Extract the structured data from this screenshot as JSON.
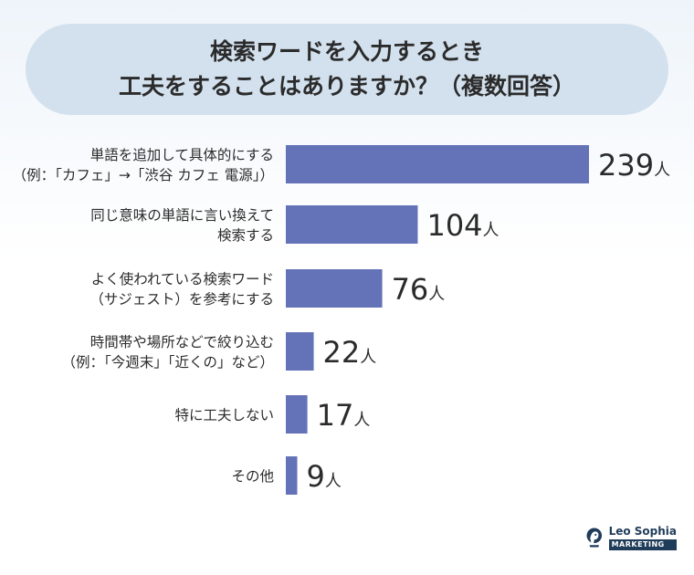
{
  "title": {
    "line1": "検索ワードを入力するとき",
    "line2": "工夫をすることはありますか？（複数回答）"
  },
  "colors": {
    "bar": "#6472b8",
    "title_bg": "#d3e1ee",
    "brand": "#1f3c5a"
  },
  "chart_data": {
    "type": "bar",
    "orientation": "horizontal",
    "unit": "人",
    "categories": [
      [
        "単語を追加して具体的にする",
        "（例：「カフェ」→「渋谷 カフェ 電源」）"
      ],
      [
        "同じ意味の単語に言い換えて",
        "検索する"
      ],
      [
        "よく使われている検索ワード",
        "（サジェスト）を参考にする"
      ],
      [
        "時間帯や場所などで絞り込む",
        "（例：「今週末」「近くの」など）"
      ],
      [
        "特に工夫しない"
      ],
      [
        "その他"
      ]
    ],
    "values": [
      239,
      104,
      76,
      22,
      17,
      9
    ]
  },
  "logo": {
    "name": "Leo Sophia",
    "tag": "MARKETING"
  }
}
